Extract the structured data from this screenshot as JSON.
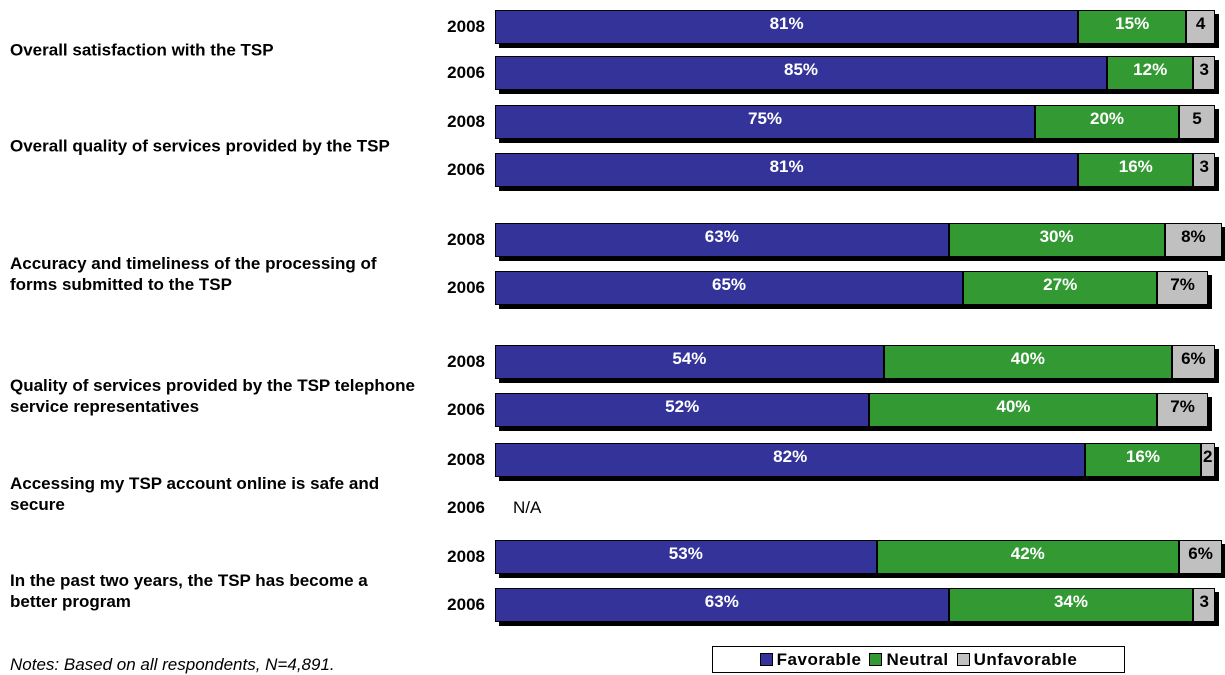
{
  "chart_data": {
    "type": "bar",
    "orientation": "horizontal",
    "stacked": true,
    "xlim": [
      0,
      100
    ],
    "groups": [
      {
        "label": "Overall satisfaction with the TSP",
        "categories": [
          "2008",
          "2006"
        ]
      },
      {
        "label": "Overall quality of services provided by the TSP",
        "categories": [
          "2008",
          "2006"
        ]
      },
      {
        "label": "Accuracy and timeliness of the processing of forms submitted to the TSP",
        "categories": [
          "2008",
          "2006"
        ]
      },
      {
        "label": "Quality of services provided by the TSP telephone service representatives",
        "categories": [
          "2008",
          "2006"
        ]
      },
      {
        "label": "Accessing my TSP account online is safe and secure",
        "categories": [
          "2008",
          "2006"
        ]
      },
      {
        "label": "In the past two years, the TSP has become a better program",
        "categories": [
          "2008",
          "2006"
        ]
      }
    ],
    "series": [
      {
        "name": "Favorable",
        "color": "#333399",
        "text_color": "#ffffff",
        "values": [
          81,
          85,
          75,
          81,
          63,
          65,
          54,
          52,
          82,
          null,
          53,
          63
        ],
        "value_labels": [
          "81%",
          "85%",
          "75%",
          "81%",
          "63%",
          "65%",
          "54%",
          "52%",
          "82%",
          null,
          "53%",
          "63%"
        ]
      },
      {
        "name": "Neutral",
        "color": "#339933",
        "text_color": "#ffffff",
        "values": [
          15,
          12,
          20,
          16,
          30,
          27,
          40,
          40,
          16,
          null,
          42,
          34
        ],
        "value_labels": [
          "15%",
          "12%",
          "20%",
          "16%",
          "30%",
          "27%",
          "40%",
          "40%",
          "16%",
          null,
          "42%",
          "34%"
        ]
      },
      {
        "name": "Unfavorable",
        "color": "#c0c0c0",
        "text_color": "#000000",
        "values": [
          4,
          3,
          5,
          3,
          8,
          7,
          6,
          7,
          2,
          null,
          6,
          3
        ],
        "value_labels": [
          "4",
          "3",
          "5",
          "3",
          "8%",
          "7%",
          "6%",
          "7%",
          "2",
          null,
          "6%",
          "3"
        ]
      }
    ],
    "na_label": "N/A",
    "note": "Notes: Based on all respondents, N=4,891."
  }
}
